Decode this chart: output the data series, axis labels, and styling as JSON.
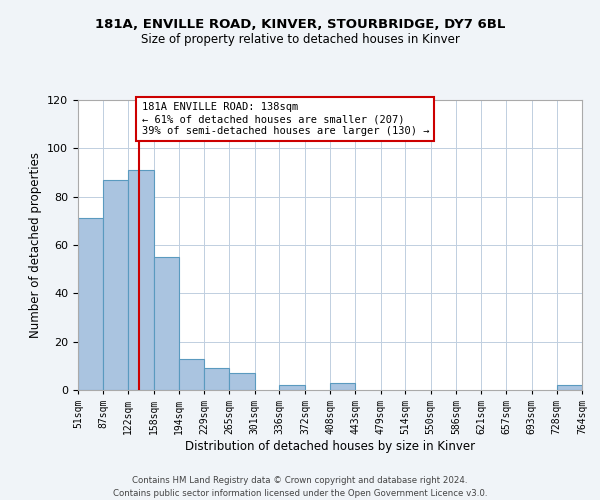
{
  "title1": "181A, ENVILLE ROAD, KINVER, STOURBRIDGE, DY7 6BL",
  "title2": "Size of property relative to detached houses in Kinver",
  "xlabel": "Distribution of detached houses by size in Kinver",
  "ylabel": "Number of detached properties",
  "bin_edges": [
    51,
    87,
    122,
    158,
    194,
    229,
    265,
    301,
    336,
    372,
    408,
    443,
    479,
    514,
    550,
    586,
    621,
    657,
    693,
    728,
    764
  ],
  "bar_heights": [
    71,
    87,
    91,
    55,
    13,
    9,
    7,
    0,
    2,
    0,
    3,
    0,
    0,
    0,
    0,
    0,
    0,
    0,
    0,
    2
  ],
  "bar_color": "#aac4e0",
  "bar_edge_color": "#5a9abf",
  "property_line_x": 138,
  "property_line_color": "#cc0000",
  "annotation_title": "181A ENVILLE ROAD: 138sqm",
  "annotation_line1": "← 61% of detached houses are smaller (207)",
  "annotation_line2": "39% of semi-detached houses are larger (130) →",
  "annotation_box_color": "#ffffff",
  "annotation_box_edge_color": "#cc0000",
  "ylim": [
    0,
    120
  ],
  "yticks": [
    0,
    20,
    40,
    60,
    80,
    100,
    120
  ],
  "tick_labels": [
    "51sqm",
    "87sqm",
    "122sqm",
    "158sqm",
    "194sqm",
    "229sqm",
    "265sqm",
    "301sqm",
    "336sqm",
    "372sqm",
    "408sqm",
    "443sqm",
    "479sqm",
    "514sqm",
    "550sqm",
    "586sqm",
    "621sqm",
    "657sqm",
    "693sqm",
    "728sqm",
    "764sqm"
  ],
  "footer": "Contains HM Land Registry data © Crown copyright and database right 2024.\nContains public sector information licensed under the Open Government Licence v3.0.",
  "background_color": "#f0f4f8",
  "plot_background_color": "#ffffff"
}
